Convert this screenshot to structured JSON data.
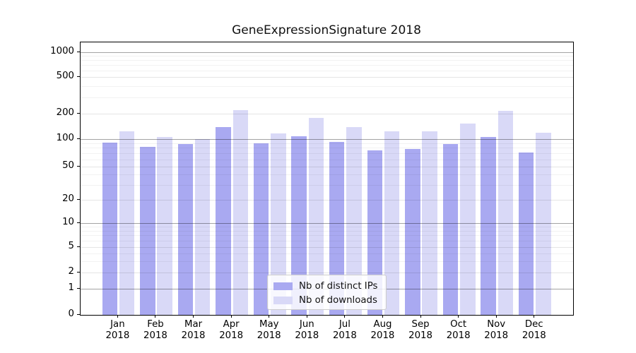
{
  "title": "GeneExpressionSignature 2018",
  "colors": {
    "ips_bar": "#a9a9f1",
    "downloads_bar": "#d9d9f7",
    "axis": "#000000",
    "legend_border": "#cccccc"
  },
  "y_axis": {
    "tick_labels": [
      "0",
      "1",
      "2",
      "5",
      "10",
      "20",
      "50",
      "100",
      "200",
      "500",
      "1000"
    ]
  },
  "x_axis": {
    "year": "2018",
    "month_labels": [
      "Jan",
      "Feb",
      "Mar",
      "Apr",
      "May",
      "Jun",
      "Jul",
      "Aug",
      "Sep",
      "Oct",
      "Nov",
      "Dec"
    ]
  },
  "legend": {
    "items": [
      {
        "label": "Nb of distinct IPs",
        "series": "ips"
      },
      {
        "label": "Nb of downloads",
        "series": "downloads"
      }
    ]
  },
  "chart_data": {
    "type": "bar",
    "title": "GeneExpressionSignature 2018",
    "categories": [
      "Jan 2018",
      "Feb 2018",
      "Mar 2018",
      "Apr 2018",
      "May 2018",
      "Jun 2018",
      "Jul 2018",
      "Aug 2018",
      "Sep 2018",
      "Oct 2018",
      "Nov 2018",
      "Dec 2018"
    ],
    "series": [
      {
        "name": "Nb of distinct IPs",
        "color": "#a9a9f1",
        "values": [
          92,
          83,
          88,
          140,
          90,
          108,
          94,
          76,
          78,
          89,
          106,
          72
        ]
      },
      {
        "name": "Nb of downloads",
        "color": "#d9d9f7",
        "values": [
          124,
          107,
          100,
          220,
          117,
          181,
          140,
          125,
          125,
          154,
          215,
          119
        ]
      }
    ],
    "yscale": "symlog",
    "yticks": [
      0,
      1,
      2,
      5,
      10,
      20,
      50,
      100,
      200,
      500,
      1000
    ],
    "ylim": [
      0,
      1400
    ],
    "grid": "horizontal",
    "grid_major_values": [
      1,
      10,
      100,
      1000
    ],
    "grid_mid_values": [
      2,
      5,
      20,
      50,
      200,
      500
    ],
    "grid_minor_values": [
      3,
      4,
      6,
      7,
      8,
      9,
      30,
      40,
      60,
      70,
      80,
      90,
      300,
      400,
      600,
      700,
      800,
      900
    ],
    "legend_position": "lower center"
  }
}
